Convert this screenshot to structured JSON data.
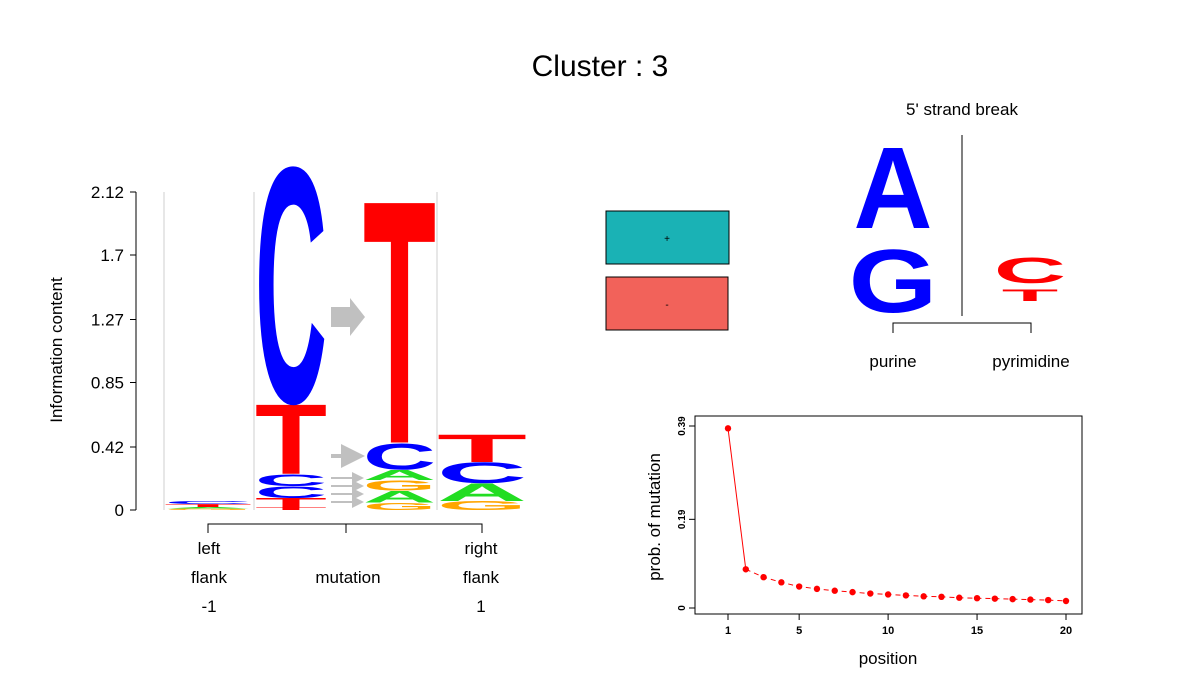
{
  "title": "Cluster : 3",
  "colors": {
    "A": "#22dd22",
    "C": "#0000ff",
    "G": "#ffa500",
    "T": "#ff0000",
    "arrow": "#c0c0c0",
    "strand_plus": "#1ab2b5",
    "strand_minus": "#f2625a",
    "point": "#ff0000",
    "logo_A": "#0000ff",
    "logo_G": "#0000ff",
    "logo_C": "#ff0000",
    "logo_T": "#ff0000"
  },
  "logo_panel": {
    "ylabel": "Information content",
    "ticks": [
      "0",
      "0.42",
      "0.85",
      "1.27",
      "1.7",
      "2.12"
    ],
    "groups": {
      "left": [
        "left",
        "flank",
        "-1"
      ],
      "mid": "mutation",
      "right": [
        "right",
        "flank",
        "1"
      ]
    }
  },
  "strand_legend": {
    "plus_label": "+",
    "minus_label": "-"
  },
  "break_logo": {
    "header": "5' strand break",
    "left_letters": [
      "A",
      "G"
    ],
    "right_letters": [
      "C",
      "T"
    ],
    "left_label": "purine",
    "right_label": "pyrimidine"
  },
  "chart_data": [
    {
      "type": "sequence_logo",
      "ylabel": "Information content",
      "ylim": [
        0,
        2.12
      ],
      "yticks": [
        0,
        0.42,
        0.85,
        1.27,
        1.7,
        2.12
      ],
      "columns": [
        {
          "position": "-1",
          "stack": [
            {
              "letter": "G",
              "height": 0.01
            },
            {
              "letter": "A",
              "height": 0.01
            },
            {
              "letter": "T",
              "height": 0.02
            },
            {
              "letter": "C",
              "height": 0.02
            }
          ]
        },
        {
          "position": "mutation_from",
          "stack": [
            {
              "letter": "T",
              "height": 0.02
            },
            {
              "letter": "T",
              "height": 0.06
            },
            {
              "letter": "C",
              "height": 0.08
            },
            {
              "letter": "C",
              "height": 0.08
            },
            {
              "letter": "T",
              "height": 0.48
            },
            {
              "letter": "C",
              "height": 1.62
            }
          ]
        },
        {
          "position": "mutation_to",
          "stack": [
            {
              "letter": "G",
              "height": 0.05
            },
            {
              "letter": "A",
              "height": 0.08
            },
            {
              "letter": "G",
              "height": 0.07
            },
            {
              "letter": "A",
              "height": 0.07
            },
            {
              "letter": "C",
              "height": 0.18
            },
            {
              "letter": "T",
              "height": 1.67
            }
          ]
        },
        {
          "position": "1",
          "stack": [
            {
              "letter": "G",
              "height": 0.06
            },
            {
              "letter": "A",
              "height": 0.12
            },
            {
              "letter": "C",
              "height": 0.14
            },
            {
              "letter": "T",
              "height": 0.19
            }
          ]
        }
      ]
    },
    {
      "type": "line",
      "xlabel": "position",
      "ylabel": "prob. of mutation",
      "xticks": [
        1,
        5,
        10,
        15,
        20
      ],
      "yticks": [
        "0",
        "0.19",
        "0.39"
      ],
      "xlim": [
        1,
        20
      ],
      "ylim": [
        0,
        0.39
      ],
      "x": [
        1,
        2,
        3,
        4,
        5,
        6,
        7,
        8,
        9,
        10,
        11,
        12,
        13,
        14,
        15,
        16,
        17,
        18,
        19,
        20
      ],
      "y": [
        0.385,
        0.083,
        0.066,
        0.055,
        0.046,
        0.041,
        0.037,
        0.034,
        0.031,
        0.029,
        0.027,
        0.025,
        0.024,
        0.022,
        0.021,
        0.02,
        0.019,
        0.018,
        0.017,
        0.015
      ]
    }
  ]
}
